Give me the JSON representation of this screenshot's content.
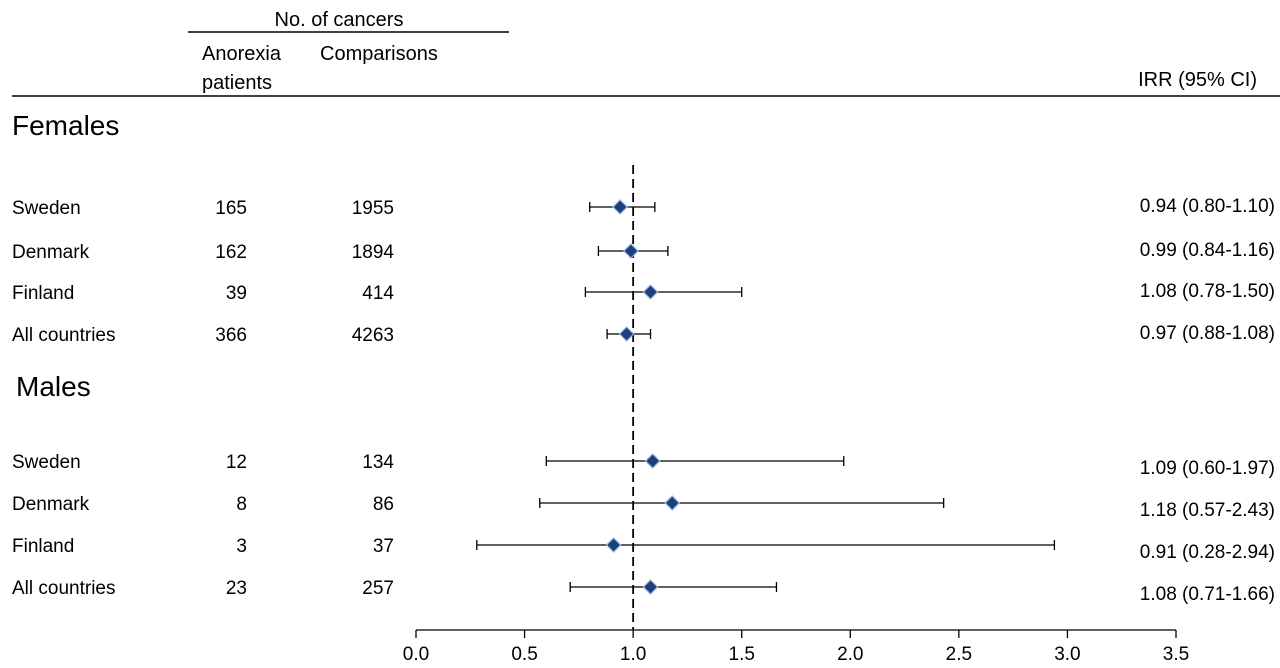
{
  "header": {
    "group_title": "No. of cancers",
    "col_patients_line1": "Anorexia",
    "col_patients_line2": "patients",
    "col_comparisons": "Comparisons",
    "col_irr": "IRR (95% CI)"
  },
  "chart_data": {
    "type": "forest",
    "xlim": [
      0.0,
      3.5
    ],
    "x_ticks": [
      "0.0",
      "0.5",
      "1.0",
      "1.5",
      "2.0",
      "2.5",
      "3.0",
      "3.5"
    ],
    "reference_line": 1.0,
    "marker_color": "#1f3f7a",
    "sections": [
      {
        "name": "Females",
        "rows": [
          {
            "label": "Sweden",
            "patients": "165",
            "comparisons": "1955",
            "irr": 0.94,
            "lo": 0.8,
            "hi": 1.1,
            "irr_text": "0.94 (0.80-1.10)"
          },
          {
            "label": "Denmark",
            "patients": "162",
            "comparisons": "1894",
            "irr": 0.99,
            "lo": 0.84,
            "hi": 1.16,
            "irr_text": "0.99 (0.84-1.16)"
          },
          {
            "label": "Finland",
            "patients": "39",
            "comparisons": "414",
            "irr": 1.08,
            "lo": 0.78,
            "hi": 1.5,
            "irr_text": "1.08 (0.78-1.50)"
          },
          {
            "label": "All countries",
            "patients": "366",
            "comparisons": "4263",
            "irr": 0.97,
            "lo": 0.88,
            "hi": 1.08,
            "irr_text": "0.97 (0.88-1.08)"
          }
        ]
      },
      {
        "name": "Males",
        "rows": [
          {
            "label": "Sweden",
            "patients": "12",
            "comparisons": "134",
            "irr": 1.09,
            "lo": 0.6,
            "hi": 1.97,
            "irr_text": "1.09 (0.60-1.97)"
          },
          {
            "label": "Denmark",
            "patients": "8",
            "comparisons": "86",
            "irr": 1.18,
            "lo": 0.57,
            "hi": 2.43,
            "irr_text": "1.18 (0.57-2.43)"
          },
          {
            "label": "Finland",
            "patients": "3",
            "comparisons": "37",
            "irr": 0.91,
            "lo": 0.28,
            "hi": 2.94,
            "irr_text": "0.91 (0.28-2.94)"
          },
          {
            "label": "All countries",
            "patients": "23",
            "comparisons": "257",
            "irr": 1.08,
            "lo": 0.71,
            "hi": 1.66,
            "irr_text": "1.08 (0.71-1.66)"
          }
        ]
      }
    ]
  }
}
